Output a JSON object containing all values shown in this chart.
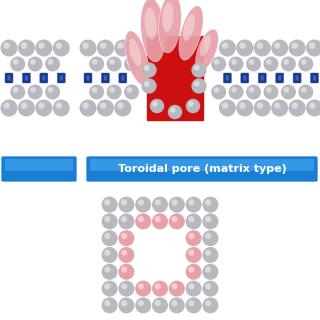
{
  "bg_color": "#ffffff",
  "label_text": "Toroidal pore (matrix type)",
  "label_bg_dark": "#1a7fd4",
  "label_bg_light": "#4aaaf0",
  "label_text_color": "#ffffff",
  "sphere_gray": "#b8b8be",
  "sphere_gray_hi": "#e8e8ee",
  "sphere_pink": "#e8a0a8",
  "sphere_pink_hi": "#f8d0d4",
  "sphere_red": "#cc1010",
  "membrane_blue_dark": "#1a3a88",
  "membrane_blue_mid": "#2255bb",
  "membrane_blue_light": "#4477dd",
  "fig_width": 3.2,
  "fig_height": 3.2,
  "dpi": 100
}
